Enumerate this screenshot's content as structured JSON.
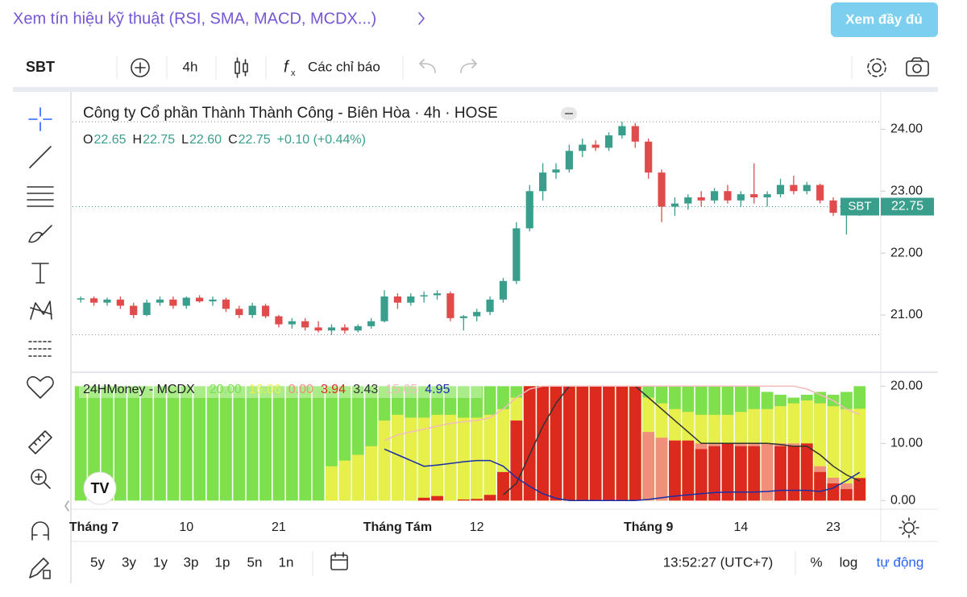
{
  "header": {
    "link": "Xem tín hiệu kỹ thuật (RSI, SMA, MACD, MCDX...)",
    "button": "Xem đầy đủ"
  },
  "toolbar": {
    "symbol": "SBT",
    "interval": "4h",
    "indicators": "Các chỉ báo"
  },
  "footer": {
    "ranges": [
      "5y",
      "3y",
      "1y",
      "3p",
      "1p",
      "5n",
      "1n"
    ],
    "time": "13:52:27 (UTC+7)",
    "percent": "%",
    "log": "log",
    "auto": "tự động"
  },
  "chart_data": [
    {
      "type": "candlestick",
      "title": "Công ty Cổ phần Thành Thành Công - Biên Hòa · 4h · HOSE",
      "legend": [
        {
          "key": "O",
          "value": 22.65,
          "label": "22.65"
        },
        {
          "key": "H",
          "value": 22.75,
          "label": "22.75"
        },
        {
          "key": "L",
          "value": 22.6,
          "label": "22.60"
        },
        {
          "key": "C",
          "value": 22.75,
          "label": "22.75"
        }
      ],
      "change": "+0.10 (+0.44%)",
      "last": {
        "name": "SBT",
        "value": 22.75,
        "label": "22.75"
      },
      "up_color": "#3a9e8c",
      "down_color": "#e04b4b",
      "ylim": [
        20.09,
        24.59
      ],
      "yticks": [
        {
          "value": 21,
          "label": "21.00"
        },
        {
          "value": 22,
          "label": "22.00"
        },
        {
          "value": 23,
          "label": "23.00"
        },
        {
          "value": 24,
          "label": "24.00"
        }
      ],
      "grid": false,
      "categories": [
        null,
        "Tháng 7",
        null,
        null,
        null,
        null,
        null,
        null,
        "10",
        null,
        null,
        null,
        null,
        null,
        null,
        "21",
        null,
        null,
        null,
        null,
        null,
        null,
        null,
        null,
        "Tháng Tám",
        null,
        null,
        null,
        null,
        null,
        "12",
        null,
        null,
        null,
        null,
        null,
        null,
        null,
        null,
        null,
        null,
        null,
        null,
        "Tháng 9",
        null,
        null,
        null,
        null,
        null,
        null,
        "14",
        null,
        null,
        null,
        null,
        null,
        null,
        "23",
        null,
        null
      ],
      "ohlc": [
        [
          21.25,
          21.3,
          21.2,
          21.27
        ],
        [
          21.27,
          21.3,
          21.15,
          21.2
        ],
        [
          21.2,
          21.28,
          21.15,
          21.25
        ],
        [
          21.25,
          21.3,
          21.1,
          21.15
        ],
        [
          21.15,
          21.2,
          20.95,
          21.0
        ],
        [
          21.0,
          21.25,
          20.98,
          21.2
        ],
        [
          21.2,
          21.3,
          21.15,
          21.25
        ],
        [
          21.25,
          21.3,
          21.1,
          21.15
        ],
        [
          21.15,
          21.3,
          21.1,
          21.28
        ],
        [
          21.28,
          21.32,
          21.2,
          21.22
        ],
        [
          21.22,
          21.3,
          21.15,
          21.25
        ],
        [
          21.25,
          21.28,
          21.05,
          21.1
        ],
        [
          21.1,
          21.15,
          20.95,
          21.0
        ],
        [
          21.0,
          21.2,
          20.95,
          21.15
        ],
        [
          21.15,
          21.18,
          20.95,
          20.98
        ],
        [
          20.98,
          21.0,
          20.8,
          20.85
        ],
        [
          20.85,
          20.95,
          20.78,
          20.9
        ],
        [
          20.9,
          20.95,
          20.75,
          20.8
        ],
        [
          20.8,
          20.9,
          20.72,
          20.75
        ],
        [
          20.75,
          20.85,
          20.68,
          20.8
        ],
        [
          20.8,
          20.85,
          20.7,
          20.75
        ],
        [
          20.75,
          20.85,
          20.72,
          20.82
        ],
        [
          20.82,
          20.95,
          20.78,
          20.9
        ],
        [
          20.9,
          21.4,
          20.88,
          21.3
        ],
        [
          21.3,
          21.35,
          21.1,
          21.2
        ],
        [
          21.2,
          21.35,
          21.15,
          21.3
        ],
        [
          21.3,
          21.38,
          21.2,
          21.32
        ],
        [
          21.32,
          21.4,
          21.25,
          21.35
        ],
        [
          21.35,
          21.38,
          20.9,
          20.95
        ],
        [
          20.95,
          21.0,
          20.75,
          20.98
        ],
        [
          20.98,
          21.1,
          20.9,
          21.05
        ],
        [
          21.05,
          21.3,
          21.0,
          21.25
        ],
        [
          21.25,
          21.6,
          21.2,
          21.55
        ],
        [
          21.55,
          22.5,
          21.5,
          22.4
        ],
        [
          22.4,
          23.1,
          22.35,
          23.0
        ],
        [
          23.0,
          23.45,
          22.85,
          23.3
        ],
        [
          23.3,
          23.45,
          23.2,
          23.35
        ],
        [
          23.35,
          23.75,
          23.3,
          23.65
        ],
        [
          23.65,
          23.85,
          23.55,
          23.75
        ],
        [
          23.75,
          23.82,
          23.65,
          23.7
        ],
        [
          23.7,
          23.95,
          23.65,
          23.9
        ],
        [
          23.9,
          24.12,
          23.85,
          24.05
        ],
        [
          24.05,
          24.1,
          23.7,
          23.8
        ],
        [
          23.8,
          23.85,
          23.2,
          23.3
        ],
        [
          23.3,
          23.35,
          22.5,
          22.75
        ],
        [
          22.75,
          22.9,
          22.6,
          22.8
        ],
        [
          22.8,
          22.95,
          22.7,
          22.9
        ],
        [
          22.9,
          23.0,
          22.75,
          22.85
        ],
        [
          22.85,
          23.05,
          22.8,
          23.0
        ],
        [
          23.0,
          23.1,
          22.8,
          22.85
        ],
        [
          22.85,
          23.0,
          22.75,
          22.95
        ],
        [
          22.95,
          23.45,
          22.8,
          22.9
        ],
        [
          22.9,
          23.0,
          22.75,
          22.95
        ],
        [
          22.95,
          23.2,
          22.9,
          23.1
        ],
        [
          23.1,
          23.25,
          22.95,
          23.0
        ],
        [
          23.0,
          23.15,
          22.95,
          23.1
        ],
        [
          23.1,
          23.12,
          22.8,
          22.85
        ],
        [
          22.85,
          22.9,
          22.6,
          22.65
        ],
        [
          22.65,
          22.7,
          22.3,
          22.65
        ],
        [
          22.65,
          22.75,
          22.6,
          22.75
        ]
      ]
    },
    {
      "type": "mcdx",
      "title": "24HMoney - MCDX",
      "ylim": [
        -1.5,
        22.3
      ],
      "yticks": [
        {
          "value": 0,
          "label": "0.00"
        },
        {
          "value": 10,
          "label": "10.00"
        },
        {
          "value": 20,
          "label": "20.00"
        }
      ],
      "series": [
        {
          "kind": "bar",
          "color": "#7de04c",
          "last": {
            "value": 20,
            "label": "20.00"
          },
          "values": [
            20,
            20,
            20,
            20,
            20,
            20,
            20,
            20,
            20,
            20,
            20,
            20,
            20,
            20,
            20,
            20,
            20,
            20,
            20,
            20,
            20,
            20,
            20,
            20,
            20,
            20,
            20,
            20,
            20,
            20,
            20,
            20,
            20,
            20,
            20,
            20,
            20,
            20,
            20,
            20,
            20,
            20,
            20,
            20,
            20,
            20,
            20,
            20,
            20,
            20,
            20,
            20,
            19,
            18.5,
            18,
            18.5,
            19,
            18.5,
            19,
            20
          ]
        },
        {
          "kind": "bar",
          "color": "#e7f04a",
          "last": {
            "value": 16.06,
            "label": "16.06"
          },
          "values": [
            0,
            0,
            0,
            0,
            0,
            0,
            0,
            0,
            0,
            0,
            0,
            0,
            0,
            0,
            0,
            0,
            0,
            0,
            0,
            6,
            7,
            8,
            9.5,
            14,
            15,
            14.5,
            14.5,
            15,
            15,
            14.5,
            14.5,
            15,
            16,
            18,
            20,
            20,
            20,
            20,
            20,
            20,
            20,
            20,
            20,
            18,
            17,
            16,
            15.5,
            15,
            15,
            15,
            15.5,
            16,
            16,
            16.5,
            17,
            17.5,
            17,
            16.5,
            16,
            16.06
          ]
        },
        {
          "kind": "bar",
          "color": "#f0907a",
          "last": {
            "value": 0,
            "label": "0.00"
          },
          "values": [
            0,
            0,
            0,
            0,
            0,
            0,
            0,
            0,
            0,
            0,
            0,
            0,
            0,
            0,
            0,
            0,
            0,
            0,
            0,
            0,
            0,
            0,
            0,
            0,
            0,
            0,
            0,
            0,
            0,
            0,
            0,
            0,
            0,
            0,
            0,
            0,
            0,
            0,
            0,
            0,
            0,
            0,
            0,
            12,
            11,
            10.5,
            10,
            10,
            10,
            10,
            10,
            10,
            10,
            10,
            10,
            9.5,
            6,
            4,
            3,
            0
          ]
        },
        {
          "kind": "bar",
          "color": "#dc2a1e",
          "last": {
            "value": 3.94,
            "label": "3.94"
          },
          "values": [
            0,
            0,
            0,
            0,
            0,
            0,
            0,
            0,
            0,
            0,
            0,
            0,
            0,
            0,
            0,
            0,
            0,
            0,
            0,
            0,
            0,
            0,
            0,
            0,
            0,
            0,
            0.5,
            0.8,
            0,
            0.2,
            0.3,
            1,
            5,
            14,
            20,
            20,
            20,
            20,
            20,
            20,
            20,
            20,
            20,
            0,
            0,
            10.5,
            10.5,
            9,
            9.5,
            10,
            9.5,
            9.5,
            0,
            9.5,
            9.5,
            10,
            5,
            3,
            2,
            3.94
          ]
        },
        {
          "kind": "line",
          "color": "#333333",
          "last": {
            "value": 3.43,
            "label": "3.43"
          },
          "values": [
            null,
            null,
            null,
            null,
            null,
            null,
            null,
            null,
            null,
            null,
            null,
            null,
            null,
            null,
            null,
            null,
            null,
            null,
            null,
            null,
            null,
            null,
            null,
            null,
            null,
            null,
            null,
            null,
            null,
            null,
            null,
            null,
            1,
            3,
            8,
            13,
            17,
            20,
            20,
            20,
            20,
            20,
            20,
            18,
            16,
            14,
            12,
            10,
            10,
            10,
            10,
            10,
            10,
            9.8,
            9.5,
            9.5,
            8,
            6,
            4.5,
            3.43
          ]
        },
        {
          "kind": "line",
          "color": "#f2bcbc",
          "last": {
            "value": 15.05,
            "label": "15.05"
          },
          "values": [
            null,
            null,
            null,
            null,
            null,
            null,
            null,
            null,
            null,
            null,
            null,
            null,
            null,
            null,
            null,
            null,
            null,
            null,
            null,
            null,
            null,
            null,
            null,
            10.5,
            11.5,
            12,
            12.5,
            13,
            13.5,
            13.8,
            14,
            14.5,
            16,
            18,
            19.5,
            20,
            20,
            20,
            20,
            20,
            20,
            20,
            20,
            20,
            20,
            20,
            20,
            20,
            20,
            20,
            20,
            20,
            20,
            20,
            20,
            19.5,
            18.5,
            17.5,
            16,
            15.05
          ]
        },
        {
          "kind": "line",
          "color": "#1a2ea8",
          "last": {
            "value": 4.95,
            "label": "4.95"
          },
          "values": [
            null,
            null,
            null,
            null,
            null,
            null,
            null,
            null,
            null,
            null,
            null,
            null,
            null,
            null,
            null,
            null,
            null,
            null,
            null,
            null,
            null,
            null,
            null,
            9,
            8,
            7,
            6,
            6.2,
            6.5,
            6.8,
            7,
            7,
            6,
            4,
            2.5,
            1.2,
            0.4,
            0,
            0,
            0,
            0,
            0,
            0,
            0.2,
            0.5,
            0.8,
            1,
            1.2,
            1.4,
            1.5,
            1.5,
            1.5,
            1.6,
            1.8,
            1.8,
            1.8,
            1.6,
            2.2,
            3.5,
            4.95
          ]
        }
      ]
    }
  ]
}
